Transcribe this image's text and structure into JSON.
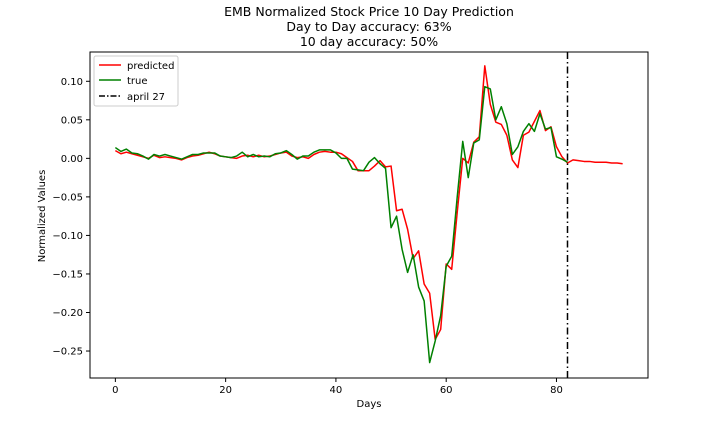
{
  "chart_data": {
    "type": "line",
    "title": [
      "EMB Normalized Stock Price 10 Day Prediction",
      "Day to Day accuracy: 63%",
      "10 day accuracy: 50%"
    ],
    "xlabel": "Days",
    "ylabel": "Normalized Values",
    "xlim": [
      -4.6,
      96.6
    ],
    "ylim": [
      -0.285,
      0.138
    ],
    "xticks": [
      0,
      20,
      40,
      60,
      80
    ],
    "yticks": [
      0.1,
      0.05,
      0.0,
      -0.05,
      -0.1,
      -0.15,
      -0.2,
      -0.25
    ],
    "ytick_labels": [
      "0.10",
      "0.05",
      "0.00",
      "−0.05",
      "−0.10",
      "−0.15",
      "−0.20",
      "−0.25"
    ],
    "grid": false,
    "legend_position": "upper-left",
    "series": [
      {
        "name": "predicted",
        "color": "#ff0000",
        "style": "solid",
        "x": [
          0,
          1,
          2,
          3,
          4,
          5,
          6,
          7,
          8,
          9,
          10,
          11,
          12,
          13,
          14,
          15,
          16,
          17,
          18,
          19,
          20,
          21,
          22,
          23,
          24,
          25,
          26,
          27,
          28,
          29,
          30,
          31,
          32,
          33,
          34,
          35,
          36,
          37,
          38,
          39,
          40,
          41,
          42,
          43,
          44,
          45,
          46,
          47,
          48,
          49,
          50,
          51,
          52,
          53,
          54,
          55,
          56,
          57,
          58,
          59,
          60,
          61,
          62,
          63,
          64,
          65,
          66,
          67,
          68,
          69,
          70,
          71,
          72,
          73,
          74,
          75,
          76,
          77,
          78,
          79,
          80,
          81,
          82,
          83,
          84,
          85,
          86,
          87,
          88,
          89,
          90,
          91,
          92
        ],
        "y": [
          0.01,
          0.006,
          0.008,
          0.006,
          0.004,
          0.002,
          0.0,
          0.004,
          0.001,
          0.002,
          0.001,
          0.0,
          -0.002,
          0.001,
          0.003,
          0.004,
          0.006,
          0.008,
          0.006,
          0.003,
          0.002,
          0.001,
          0.0,
          0.003,
          0.004,
          0.002,
          0.004,
          0.002,
          0.003,
          0.005,
          0.007,
          0.008,
          0.003,
          0.001,
          0.002,
          0.0,
          0.005,
          0.008,
          0.009,
          0.008,
          0.008,
          0.006,
          0.001,
          -0.004,
          -0.016,
          -0.016,
          -0.016,
          -0.01,
          -0.003,
          -0.011,
          -0.01,
          -0.068,
          -0.066,
          -0.092,
          -0.13,
          -0.12,
          -0.163,
          -0.175,
          -0.235,
          -0.222,
          -0.137,
          -0.144,
          -0.07,
          0.0,
          -0.006,
          0.021,
          0.028,
          0.12,
          0.07,
          0.047,
          0.044,
          0.03,
          -0.002,
          -0.012,
          0.03,
          0.034,
          0.048,
          0.062,
          0.036,
          0.041,
          0.015,
          0.002,
          -0.006,
          -0.002,
          -0.003,
          -0.004,
          -0.004,
          -0.005,
          -0.005,
          -0.005,
          -0.006,
          -0.006,
          -0.007
        ]
      },
      {
        "name": "true",
        "color": "#008000",
        "style": "solid",
        "x": [
          0,
          1,
          2,
          3,
          4,
          5,
          6,
          7,
          8,
          9,
          10,
          11,
          12,
          13,
          14,
          15,
          16,
          17,
          18,
          19,
          20,
          21,
          22,
          23,
          24,
          25,
          26,
          27,
          28,
          29,
          30,
          31,
          32,
          33,
          34,
          35,
          36,
          37,
          38,
          39,
          40,
          41,
          42,
          43,
          44,
          45,
          46,
          47,
          48,
          49,
          50,
          51,
          52,
          53,
          54,
          55,
          56,
          57,
          58,
          59,
          60,
          61,
          62,
          63,
          64,
          65,
          66,
          67,
          68,
          69,
          70,
          71,
          72,
          73,
          74,
          75,
          76,
          77,
          78,
          79,
          80,
          81,
          82
        ],
        "y": [
          0.014,
          0.009,
          0.012,
          0.007,
          0.006,
          0.003,
          -0.001,
          0.005,
          0.003,
          0.005,
          0.003,
          0.001,
          -0.001,
          0.002,
          0.005,
          0.005,
          0.007,
          0.007,
          0.007,
          0.003,
          0.002,
          0.001,
          0.003,
          0.008,
          0.002,
          0.005,
          0.002,
          0.003,
          0.002,
          0.006,
          0.007,
          0.01,
          0.005,
          -0.001,
          0.003,
          0.003,
          0.008,
          0.011,
          0.011,
          0.011,
          0.007,
          0.0,
          0.0,
          -0.014,
          -0.015,
          -0.016,
          -0.005,
          0.001,
          -0.007,
          -0.013,
          -0.09,
          -0.075,
          -0.118,
          -0.148,
          -0.125,
          -0.167,
          -0.185,
          -0.265,
          -0.237,
          -0.204,
          -0.14,
          -0.127,
          -0.05,
          0.022,
          -0.025,
          0.02,
          0.024,
          0.093,
          0.09,
          0.05,
          0.067,
          0.045,
          0.005,
          0.015,
          0.035,
          0.045,
          0.035,
          0.058,
          0.038,
          0.04,
          0.002,
          -0.001,
          -0.005
        ]
      }
    ],
    "vline": {
      "name": "april 27",
      "x": 82,
      "color": "#000000",
      "style": "dashdot"
    }
  }
}
